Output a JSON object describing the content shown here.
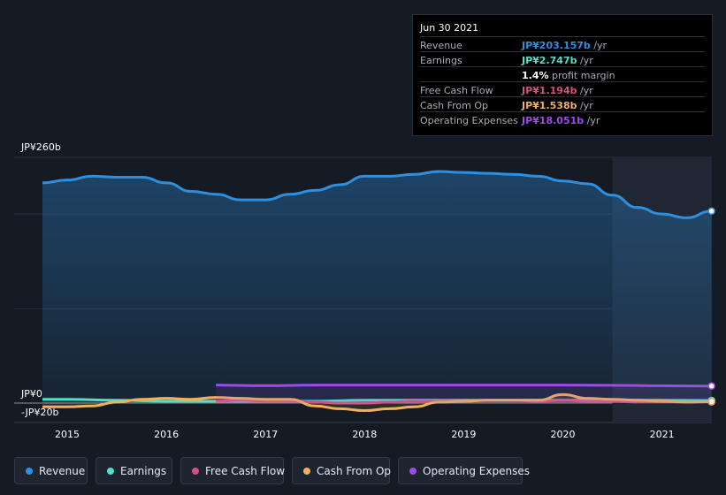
{
  "chart_data": {
    "type": "area",
    "y_unit_labels": {
      "top": "JP¥260b",
      "zero": "JP¥0",
      "bottom": "-JP¥20b"
    },
    "ylim": [
      -20,
      260
    ],
    "x_ticks": [
      "2015",
      "2016",
      "2017",
      "2018",
      "2019",
      "2020",
      "2021"
    ],
    "grid": true,
    "forecast_shaded_from": 2020.5,
    "series": [
      {
        "name": "Revenue",
        "color": "#2f8fdf",
        "x": [
          2014.75,
          2015.0,
          2015.25,
          2015.5,
          2015.75,
          2016.0,
          2016.25,
          2016.5,
          2016.75,
          2017.0,
          2017.25,
          2017.5,
          2017.75,
          2018.0,
          2018.25,
          2018.5,
          2018.75,
          2019.0,
          2019.25,
          2019.5,
          2019.75,
          2020.0,
          2020.25,
          2020.5,
          2020.75,
          2021.0,
          2021.25,
          2021.5
        ],
        "y": [
          233,
          236,
          240,
          239,
          239,
          233,
          224,
          221,
          215,
          215,
          221,
          225,
          231,
          240,
          240,
          242,
          245,
          244,
          243,
          242,
          240,
          235,
          232,
          220,
          207,
          200,
          196,
          203.157
        ]
      },
      {
        "name": "Earnings",
        "color": "#4fe0c8",
        "x": [
          2014.75,
          2015.0,
          2015.5,
          2016.0,
          2016.5,
          2017.0,
          2017.5,
          2018.0,
          2018.5,
          2019.0,
          2019.5,
          2020.0,
          2020.5,
          2021.0,
          2021.5
        ],
        "y": [
          4,
          4,
          3,
          2,
          2,
          2,
          2,
          3,
          3,
          3,
          3,
          3,
          3,
          3,
          2.747
        ]
      },
      {
        "name": "Free Cash Flow",
        "color": "#d44f86",
        "x": [
          2016.5,
          2016.75,
          2017.0,
          2017.25,
          2017.5,
          2017.75,
          2018.0,
          2018.25,
          2018.5,
          2018.75,
          2019.0,
          2019.25,
          2019.5,
          2019.75,
          2020.0,
          2020.25,
          2020.5,
          2020.75,
          2021.0,
          2021.25,
          2021.5
        ],
        "y": [
          2,
          3,
          2,
          2,
          1,
          0,
          0,
          1,
          2,
          2,
          2,
          3,
          3,
          2,
          3,
          2,
          2,
          1,
          1,
          1,
          1.194
        ]
      },
      {
        "name": "Cash From Op",
        "color": "#f1b05c",
        "x": [
          2014.75,
          2015.0,
          2015.25,
          2015.5,
          2015.75,
          2016.0,
          2016.25,
          2016.5,
          2016.75,
          2017.0,
          2017.25,
          2017.5,
          2017.75,
          2018.0,
          2018.25,
          2018.5,
          2018.75,
          2019.0,
          2019.25,
          2019.5,
          2019.75,
          2020.0,
          2020.25,
          2020.5,
          2020.75,
          2021.0,
          2021.25,
          2021.5
        ],
        "y": [
          -4,
          -4,
          -3,
          1,
          4,
          5,
          4,
          6,
          5,
          4,
          4,
          -3,
          -6,
          -8,
          -6,
          -4,
          1,
          2,
          3,
          3,
          3,
          9,
          5,
          4,
          3,
          2,
          1,
          1.538
        ]
      },
      {
        "name": "Operating Expenses",
        "color": "#9b4de8",
        "x": [
          2016.5,
          2017.0,
          2017.5,
          2018.0,
          2018.5,
          2019.0,
          2019.5,
          2020.0,
          2020.5,
          2021.0,
          2021.5
        ],
        "y": [
          19,
          18.5,
          19,
          19,
          19,
          19,
          19,
          19,
          18.8,
          18.3,
          18.051
        ]
      }
    ]
  },
  "tooltip": {
    "date": "Jun 30 2021",
    "rows": [
      {
        "label": "Revenue",
        "value": "JP¥203.157b",
        "unit": " /yr",
        "color": "#2f8fdf"
      },
      {
        "label": "Earnings",
        "value": "JP¥2.747b",
        "unit": " /yr",
        "color": "#4fe0c8"
      },
      {
        "label": "",
        "value": "1.4%",
        "unit": " profit margin",
        "color": "#ffffff"
      },
      {
        "label": "Free Cash Flow",
        "value": "JP¥1.194b",
        "unit": " /yr",
        "color": "#d44f86"
      },
      {
        "label": "Cash From Op",
        "value": "JP¥1.538b",
        "unit": " /yr",
        "color": "#f1b05c"
      },
      {
        "label": "Operating Expenses",
        "value": "JP¥18.051b",
        "unit": " /yr",
        "color": "#9b4de8"
      }
    ]
  },
  "legend": [
    {
      "label": "Revenue",
      "color": "#2f8fdf"
    },
    {
      "label": "Earnings",
      "color": "#4fe0c8"
    },
    {
      "label": "Free Cash Flow",
      "color": "#d44f86"
    },
    {
      "label": "Cash From Op",
      "color": "#f1b05c"
    },
    {
      "label": "Operating Expenses",
      "color": "#9b4de8"
    }
  ]
}
